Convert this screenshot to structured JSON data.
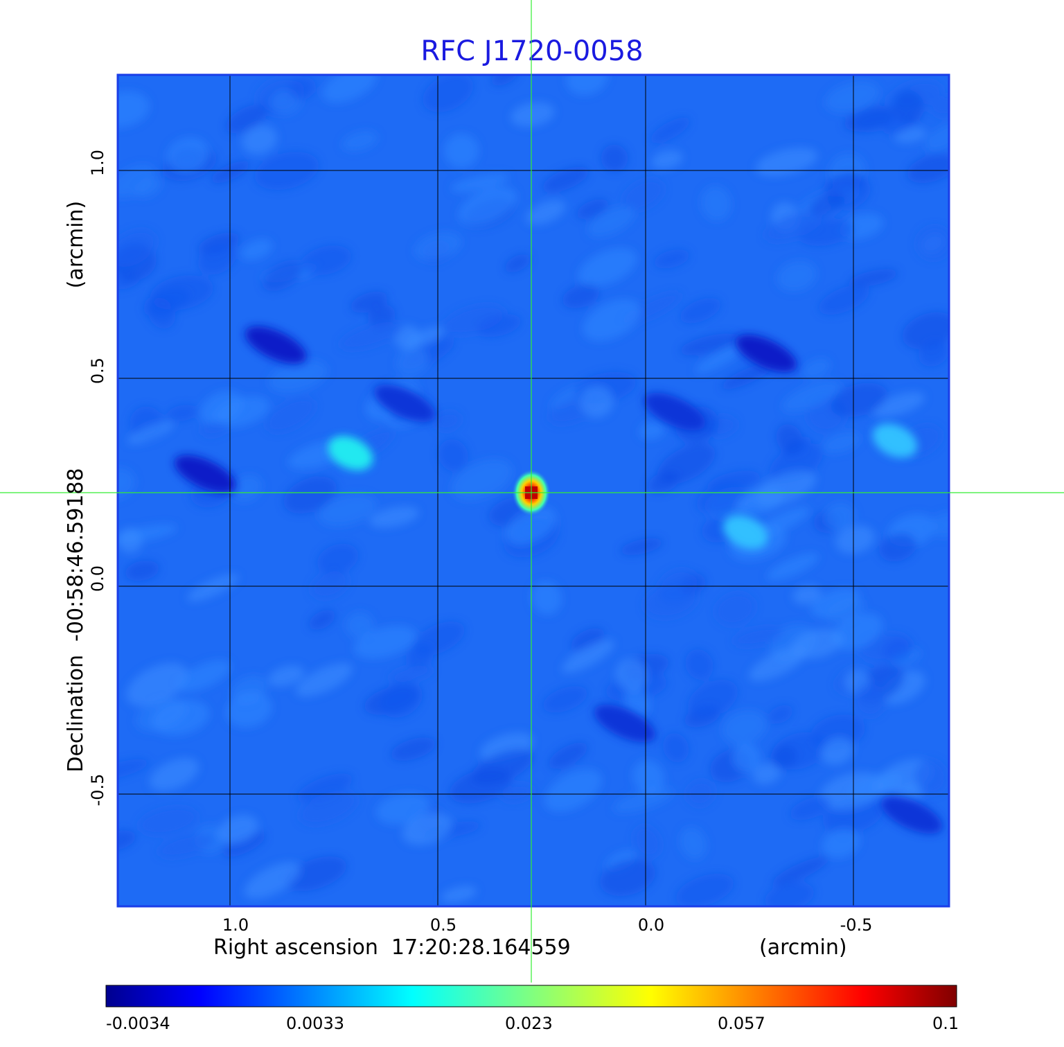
{
  "chart_data": {
    "type": "heatmap",
    "title": "RFC J1720-0058",
    "xlabel": "Right ascension  17:20:28.164559",
    "xunit": "(arcmin)",
    "ylabel": "Declination  -00:58:46.59188",
    "yunit": "(arcmin)",
    "xlim": [
      1.27,
      -0.73
    ],
    "ylim": [
      -0.77,
      1.23
    ],
    "x_ticks": [
      1.0,
      0.5,
      0.0,
      -0.5
    ],
    "x_tick_labels": [
      "1.0",
      "0.5",
      "0.0",
      "-0.5"
    ],
    "y_ticks": [
      1.0,
      0.5,
      0.0,
      -0.5
    ],
    "y_tick_labels": [
      "1.0",
      "0.5",
      "0.0",
      "-0.5"
    ],
    "grid": true,
    "crosshair": {
      "x": 0.275,
      "y": 0.225
    },
    "colormap": "jet",
    "colorbar": {
      "placement": "bottom",
      "ticks": [
        -0.0034,
        0.0033,
        0.023,
        0.057,
        0.1
      ],
      "tick_labels": [
        "-0.0034",
        "0.0033",
        "0.023",
        "0.057",
        "0.1"
      ]
    },
    "features": [
      {
        "kind": "peak",
        "x": 0.275,
        "y": 0.225,
        "value": 0.1
      },
      {
        "kind": "positive",
        "x": 0.71,
        "y": 0.32,
        "value": 0.004
      },
      {
        "kind": "positive",
        "x": -0.6,
        "y": 0.35,
        "value": 0.003
      },
      {
        "kind": "positive",
        "x": -0.24,
        "y": 0.13,
        "value": 0.0025
      },
      {
        "kind": "negative",
        "x": 0.89,
        "y": 0.58,
        "value": -0.003
      },
      {
        "kind": "negative",
        "x": -0.29,
        "y": 0.56,
        "value": -0.0034
      },
      {
        "kind": "negative",
        "x": 1.06,
        "y": 0.27,
        "value": -0.003
      },
      {
        "kind": "negative",
        "x": 0.05,
        "y": -0.33,
        "value": -0.0028
      },
      {
        "kind": "negative",
        "x": -0.64,
        "y": -0.55,
        "value": -0.0026
      },
      {
        "kind": "negative",
        "x": -0.07,
        "y": 0.42,
        "value": -0.0022
      },
      {
        "kind": "negative",
        "x": 0.58,
        "y": 0.44,
        "value": -0.0018
      }
    ]
  },
  "colors": {
    "title": "#1a1ae0",
    "frame": "#1a3ee8",
    "grid": "#000000",
    "crosshair": "#33ee33",
    "background_map": "#1e6bf5"
  }
}
